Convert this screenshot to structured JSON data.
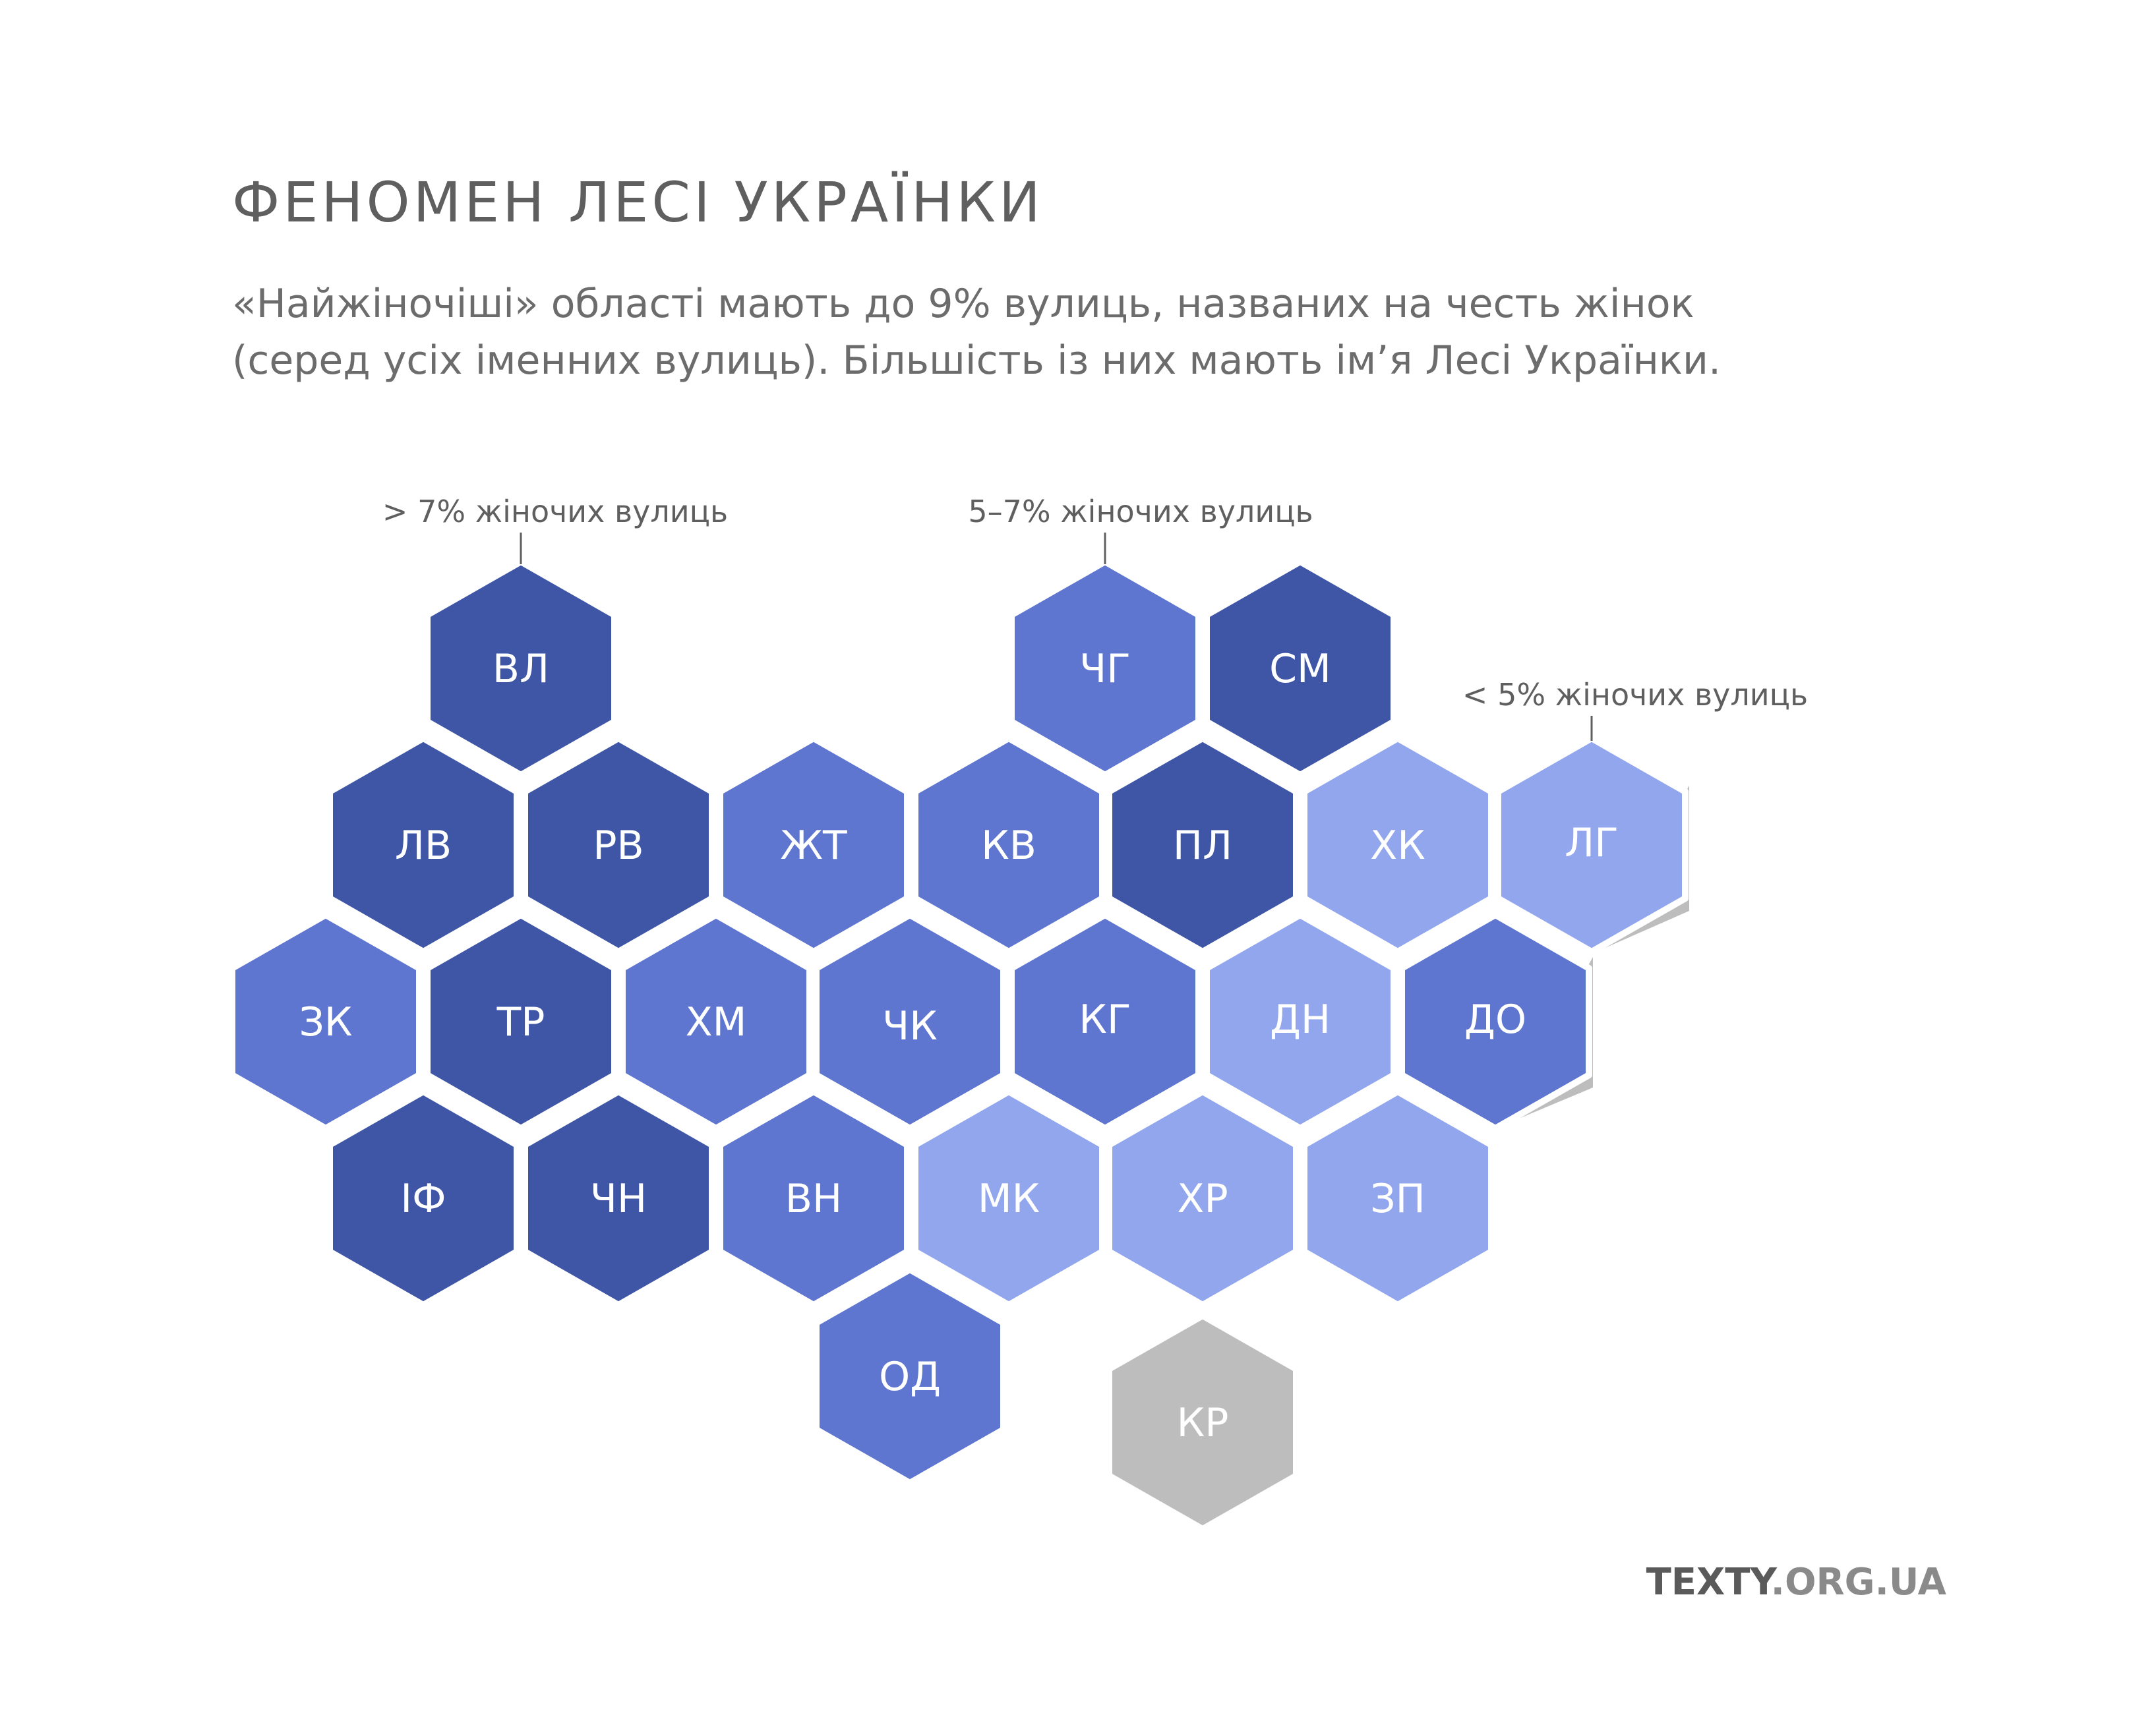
{
  "header": {
    "title": "ФЕНОМЕН ЛЕСІ УКРАЇНКИ",
    "subtitle_lines": [
      "«Найжіночіші» області мають до 9% вулиць, названих на честь жінок",
      "(серед усіх іменних вулиць). Більшість із них мають ім’я Лесі Українки."
    ]
  },
  "legend": [
    {
      "key": "high",
      "label": "> 7% жіночих вулиць",
      "color": "#3f56a6"
    },
    {
      "key": "mid",
      "label": "5–7% жіночих вулиць",
      "color": "#5f76d0"
    },
    {
      "key": "low",
      "label": "< 5% жіночих вулиць",
      "color": "#92a6ee"
    }
  ],
  "colors": {
    "high": "#3f56a6",
    "mid": "#5f76d0",
    "low": "#92a6ee",
    "nodata": "#bdbdbd",
    "text": "#ffffff"
  },
  "regions": [
    {
      "code": "ВЛ",
      "category": "high"
    },
    {
      "code": "ЧГ",
      "category": "mid"
    },
    {
      "code": "СМ",
      "category": "high"
    },
    {
      "code": "ЛВ",
      "category": "high"
    },
    {
      "code": "РВ",
      "category": "high"
    },
    {
      "code": "ЖТ",
      "category": "mid"
    },
    {
      "code": "КВ",
      "category": "mid"
    },
    {
      "code": "ПЛ",
      "category": "high"
    },
    {
      "code": "ХК",
      "category": "low"
    },
    {
      "code": "ЛГ",
      "category": "low"
    },
    {
      "code": "ЗК",
      "category": "mid"
    },
    {
      "code": "ТР",
      "category": "high"
    },
    {
      "code": "ХМ",
      "category": "mid"
    },
    {
      "code": "ЧК",
      "category": "mid"
    },
    {
      "code": "КГ",
      "category": "mid"
    },
    {
      "code": "ДН",
      "category": "low"
    },
    {
      "code": "ДО",
      "category": "mid"
    },
    {
      "code": "ІФ",
      "category": "high"
    },
    {
      "code": "ЧН",
      "category": "high"
    },
    {
      "code": "ВН",
      "category": "mid"
    },
    {
      "code": "МК",
      "category": "low"
    },
    {
      "code": "ХР",
      "category": "low"
    },
    {
      "code": "ЗП",
      "category": "low"
    },
    {
      "code": "ОД",
      "category": "mid"
    },
    {
      "code": "КР",
      "category": "nodata"
    }
  ],
  "brand": {
    "part1": "TEXTY",
    "part2": ".ORG.UA"
  }
}
